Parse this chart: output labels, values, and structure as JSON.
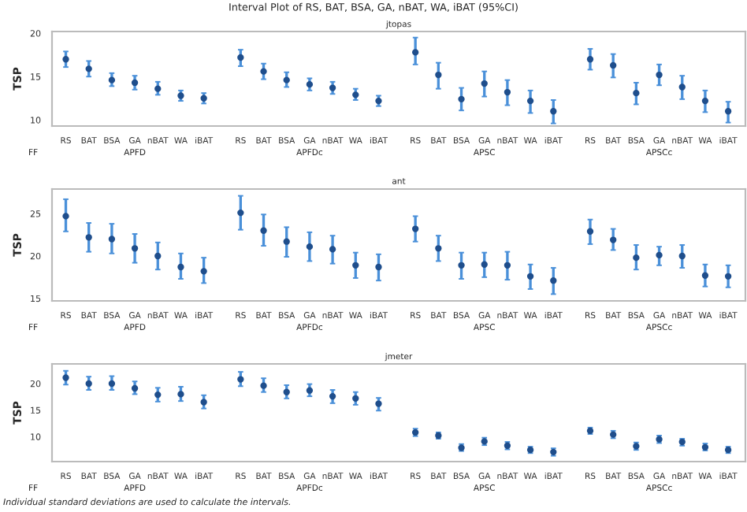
{
  "chart_data": [
    {
      "type": "scatter",
      "title": "Interval Plot of RS, BAT, BSA, GA, nBAT, WA, iBAT (95%CI)",
      "subtitle": "jtopas",
      "ylabel": "TSP",
      "categories": [
        "RS",
        "BAT",
        "BSA",
        "GA",
        "nBAT",
        "WA",
        "iBAT",
        "RS",
        "BAT",
        "BSA",
        "GA",
        "nBAT",
        "WA",
        "iBAT",
        "RS",
        "BAT",
        "BSA",
        "GA",
        "nBAT",
        "WA",
        "iBAT",
        "RS",
        "BAT",
        "BSA",
        "GA",
        "nBAT",
        "WA",
        "iBAT"
      ],
      "series": [
        {
          "color": "#1f4e8c",
          "values": [
            17.0,
            15.9,
            14.6,
            14.3,
            13.6,
            12.8,
            12.5,
            17.2,
            15.6,
            14.6,
            14.1,
            13.7,
            12.9,
            12.2,
            17.8,
            15.2,
            12.4,
            14.2,
            13.2,
            12.2,
            11.0,
            17.0,
            16.3,
            13.1,
            15.2,
            13.8,
            12.2,
            11.0
          ],
          "errors": [
            [
              16.1,
              17.9
            ],
            [
              15.0,
              16.8
            ],
            [
              13.9,
              15.4
            ],
            [
              13.5,
              15.1
            ],
            [
              12.9,
              14.4
            ],
            [
              12.2,
              13.4
            ],
            [
              11.9,
              13.1
            ],
            [
              16.2,
              18.1
            ],
            [
              14.7,
              16.5
            ],
            [
              13.8,
              15.5
            ],
            [
              13.4,
              14.8
            ],
            [
              13.0,
              14.4
            ],
            [
              12.3,
              13.6
            ],
            [
              11.6,
              12.8
            ],
            [
              16.4,
              19.5
            ],
            [
              13.6,
              16.6
            ],
            [
              11.1,
              13.7
            ],
            [
              12.7,
              15.6
            ],
            [
              11.7,
              14.6
            ],
            [
              10.8,
              13.4
            ],
            [
              9.6,
              12.3
            ],
            [
              15.8,
              18.2
            ],
            [
              14.9,
              17.6
            ],
            [
              11.8,
              14.3
            ],
            [
              14.0,
              16.4
            ],
            [
              12.4,
              15.1
            ],
            [
              10.9,
              13.4
            ],
            [
              9.7,
              12.1
            ]
          ]
        }
      ],
      "ylim": [
        9.3,
        20.2
      ],
      "yticks": [
        10,
        15,
        20
      ],
      "marker": "circle",
      "grid": false,
      "legend": false,
      "annotations": [
        "FF",
        "APFD",
        "APFDc",
        "APSC",
        "APSCc"
      ]
    },
    {
      "type": "scatter",
      "subtitle": "ant",
      "ylabel": "TSP",
      "categories": [
        "RS",
        "BAT",
        "BSA",
        "GA",
        "nBAT",
        "WA",
        "iBAT",
        "RS",
        "BAT",
        "BSA",
        "GA",
        "nBAT",
        "WA",
        "iBAT",
        "RS",
        "BAT",
        "BSA",
        "GA",
        "nBAT",
        "WA",
        "iBAT",
        "RS",
        "BAT",
        "BSA",
        "GA",
        "nBAT",
        "WA",
        "iBAT"
      ],
      "series": [
        {
          "color": "#1f4e8c",
          "values": [
            24.7,
            22.2,
            22.0,
            20.9,
            20.0,
            18.7,
            18.2,
            25.1,
            23.0,
            21.7,
            21.1,
            20.8,
            18.9,
            18.7,
            23.2,
            20.9,
            18.9,
            19.0,
            18.9,
            17.6,
            17.1,
            22.9,
            21.9,
            19.8,
            20.1,
            20.0,
            17.7,
            17.6
          ],
          "errors": [
            [
              22.9,
              26.7
            ],
            [
              20.5,
              23.9
            ],
            [
              20.3,
              23.8
            ],
            [
              19.2,
              22.6
            ],
            [
              18.4,
              21.6
            ],
            [
              17.3,
              20.3
            ],
            [
              16.8,
              19.8
            ],
            [
              23.1,
              27.1
            ],
            [
              21.2,
              24.9
            ],
            [
              19.9,
              23.4
            ],
            [
              19.4,
              22.8
            ],
            [
              19.1,
              22.4
            ],
            [
              17.4,
              20.4
            ],
            [
              17.1,
              20.2
            ],
            [
              21.7,
              24.7
            ],
            [
              19.4,
              22.4
            ],
            [
              17.3,
              20.4
            ],
            [
              17.5,
              20.4
            ],
            [
              17.2,
              20.5
            ],
            [
              16.1,
              19.0
            ],
            [
              15.5,
              18.6
            ],
            [
              21.4,
              24.3
            ],
            [
              20.7,
              23.2
            ],
            [
              18.4,
              21.3
            ],
            [
              18.9,
              21.1
            ],
            [
              18.6,
              21.3
            ],
            [
              16.4,
              19.0
            ],
            [
              16.3,
              18.9
            ]
          ]
        }
      ],
      "ylim": [
        14.7,
        27.9
      ],
      "yticks": [
        15,
        20,
        25
      ],
      "marker": "circle",
      "grid": false,
      "legend": false,
      "annotations": [
        "FF",
        "APFD",
        "APFDc",
        "APSC",
        "APSCc"
      ]
    },
    {
      "type": "scatter",
      "subtitle": "jmeter",
      "ylabel": "TSP",
      "categories": [
        "RS",
        "BAT",
        "BSA",
        "GA",
        "nBAT",
        "WA",
        "iBAT",
        "RS",
        "BAT",
        "BSA",
        "GA",
        "nBAT",
        "WA",
        "iBAT",
        "RS",
        "BAT",
        "BSA",
        "GA",
        "nBAT",
        "WA",
        "iBAT",
        "RS",
        "BAT",
        "BSA",
        "GA",
        "nBAT",
        "WA",
        "iBAT"
      ],
      "series": [
        {
          "color": "#1f4e8c",
          "values": [
            21.1,
            20.0,
            20.0,
            19.1,
            17.9,
            18.0,
            16.5,
            20.8,
            19.6,
            18.4,
            18.7,
            17.6,
            17.2,
            16.2,
            10.8,
            10.2,
            7.9,
            9.1,
            8.3,
            7.5,
            7.1,
            11.1,
            10.4,
            8.2,
            9.5,
            9.0,
            8.0,
            7.5
          ],
          "errors": [
            [
              19.8,
              22.4
            ],
            [
              18.8,
              21.3
            ],
            [
              18.8,
              21.4
            ],
            [
              18.0,
              20.4
            ],
            [
              16.6,
              19.2
            ],
            [
              16.7,
              19.4
            ],
            [
              15.3,
              17.8
            ],
            [
              19.5,
              22.2
            ],
            [
              18.4,
              21.0
            ],
            [
              17.2,
              19.7
            ],
            [
              17.6,
              19.9
            ],
            [
              16.3,
              18.8
            ],
            [
              16.0,
              18.4
            ],
            [
              14.9,
              17.3
            ],
            [
              10.1,
              11.5
            ],
            [
              9.6,
              10.8
            ],
            [
              7.3,
              8.6
            ],
            [
              8.4,
              9.8
            ],
            [
              7.6,
              9.0
            ],
            [
              6.9,
              8.1
            ],
            [
              6.4,
              7.8
            ],
            [
              10.5,
              11.7
            ],
            [
              9.7,
              11.1
            ],
            [
              7.5,
              8.9
            ],
            [
              8.8,
              10.2
            ],
            [
              8.3,
              9.6
            ],
            [
              7.4,
              8.7
            ],
            [
              6.9,
              8.1
            ]
          ]
        }
      ],
      "ylim": [
        5.3,
        23.7
      ],
      "yticks": [
        10,
        15,
        20
      ],
      "marker": "circle",
      "grid": false,
      "legend": false,
      "annotations": [
        "FF",
        "APFD",
        "APFDc",
        "APSC",
        "APSCc",
        "Individual standard deviations are used to calculate the intervals."
      ]
    }
  ]
}
